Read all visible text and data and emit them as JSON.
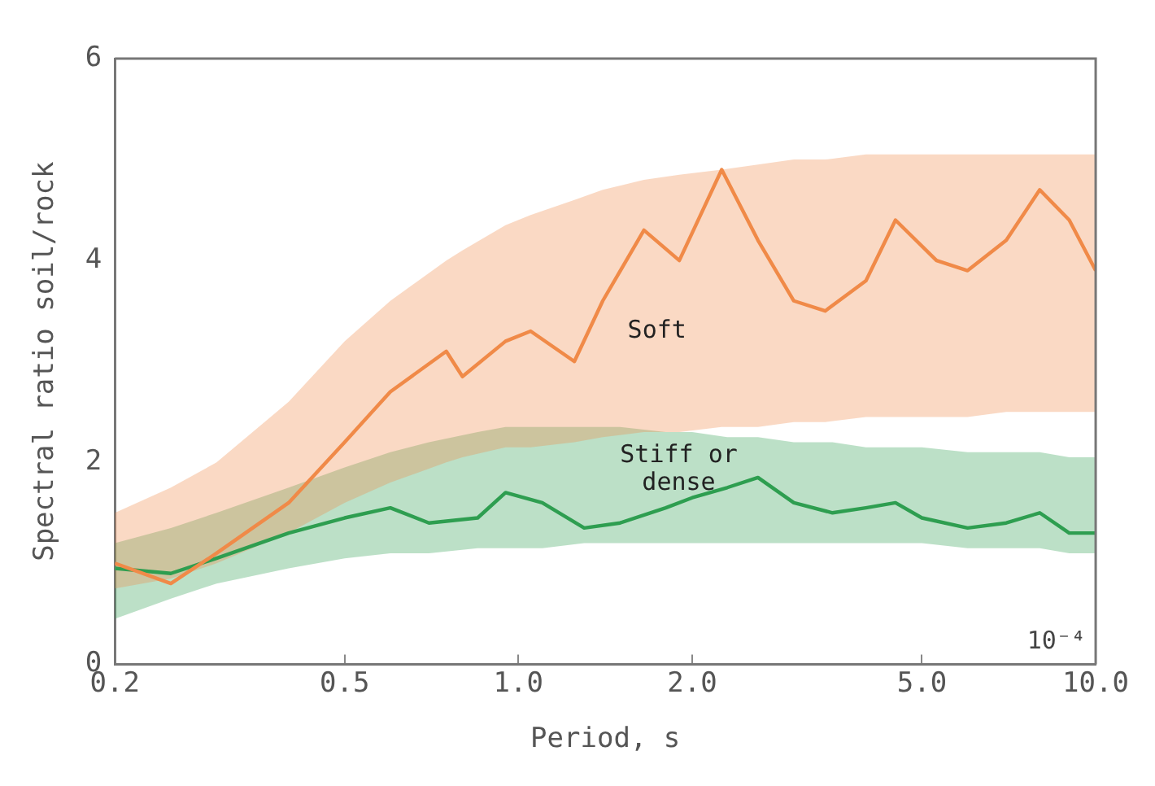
{
  "chart_data": {
    "type": "line",
    "xlabel": "Period, s",
    "ylabel": "Spectral ratio soil/rock",
    "log": "x",
    "xlim": [
      0.2,
      10
    ],
    "xticks": [
      0.2,
      0.5,
      {
        "value": 1,
        "label": "1.0"
      },
      {
        "value": 2,
        "label": "2.0"
      },
      {
        "value": 5,
        "label": "5.0"
      },
      {
        "value": 10,
        "label": "10.0"
      }
    ],
    "ylim": [
      0,
      6
    ],
    "yticks": [
      0,
      2,
      4,
      6
    ],
    "grid": false,
    "legend": false,
    "marker": "none",
    "line_style": "solid",
    "annotations": [
      "10⁻⁴"
    ],
    "series": [
      {
        "name": "Soft",
        "color": "#f08a48",
        "x": [
          0.2,
          0.25,
          0.3,
          0.4,
          0.5,
          0.6,
          0.75,
          0.8,
          0.95,
          1.05,
          1.25,
          1.4,
          1.65,
          1.9,
          2.25,
          2.6,
          3.0,
          3.4,
          4.0,
          4.5,
          5.3,
          6.0,
          7.0,
          8.0,
          9.0,
          10.0
        ],
        "values": [
          1.0,
          0.8,
          1.1,
          1.6,
          2.2,
          2.7,
          3.1,
          2.85,
          3.2,
          3.3,
          3.0,
          3.6,
          4.3,
          4.0,
          4.9,
          4.2,
          3.6,
          3.5,
          3.8,
          4.4,
          4.0,
          3.9,
          4.2,
          4.7,
          4.4,
          3.9
        ],
        "lower": [
          0.75,
          0.85,
          1.0,
          1.3,
          1.6,
          1.8,
          2.0,
          2.05,
          2.15,
          2.15,
          2.2,
          2.25,
          2.3,
          2.3,
          2.35,
          2.35,
          2.4,
          2.4,
          2.45,
          2.45,
          2.45,
          2.45,
          2.5,
          2.5,
          2.5,
          2.5
        ],
        "upper": [
          1.5,
          1.75,
          2.0,
          2.6,
          3.2,
          3.6,
          4.0,
          4.1,
          4.35,
          4.45,
          4.6,
          4.7,
          4.8,
          4.85,
          4.9,
          4.95,
          5.0,
          5.0,
          5.05,
          5.05,
          5.05,
          5.05,
          5.05,
          5.05,
          5.05,
          5.05
        ]
      },
      {
        "name": "Stiff or dense",
        "color": "#2e9e50",
        "x": [
          0.2,
          0.25,
          0.3,
          0.4,
          0.5,
          0.6,
          0.7,
          0.85,
          0.95,
          1.1,
          1.3,
          1.5,
          1.8,
          2.0,
          2.3,
          2.6,
          3.0,
          3.5,
          4.0,
          4.5,
          5.0,
          6.0,
          7.0,
          8.0,
          9.0,
          10.0
        ],
        "values": [
          0.95,
          0.9,
          1.05,
          1.3,
          1.45,
          1.55,
          1.4,
          1.45,
          1.7,
          1.6,
          1.35,
          1.4,
          1.55,
          1.65,
          1.75,
          1.85,
          1.6,
          1.5,
          1.55,
          1.6,
          1.45,
          1.35,
          1.4,
          1.5,
          1.3,
          1.3
        ],
        "lower": [
          0.45,
          0.65,
          0.8,
          0.95,
          1.05,
          1.1,
          1.1,
          1.15,
          1.15,
          1.15,
          1.2,
          1.2,
          1.2,
          1.2,
          1.2,
          1.2,
          1.2,
          1.2,
          1.2,
          1.2,
          1.2,
          1.15,
          1.15,
          1.15,
          1.1,
          1.1
        ],
        "upper": [
          1.2,
          1.35,
          1.5,
          1.75,
          1.95,
          2.1,
          2.2,
          2.3,
          2.35,
          2.35,
          2.35,
          2.35,
          2.3,
          2.3,
          2.25,
          2.25,
          2.2,
          2.2,
          2.15,
          2.15,
          2.15,
          2.1,
          2.1,
          2.1,
          2.05,
          2.05
        ]
      }
    ]
  }
}
